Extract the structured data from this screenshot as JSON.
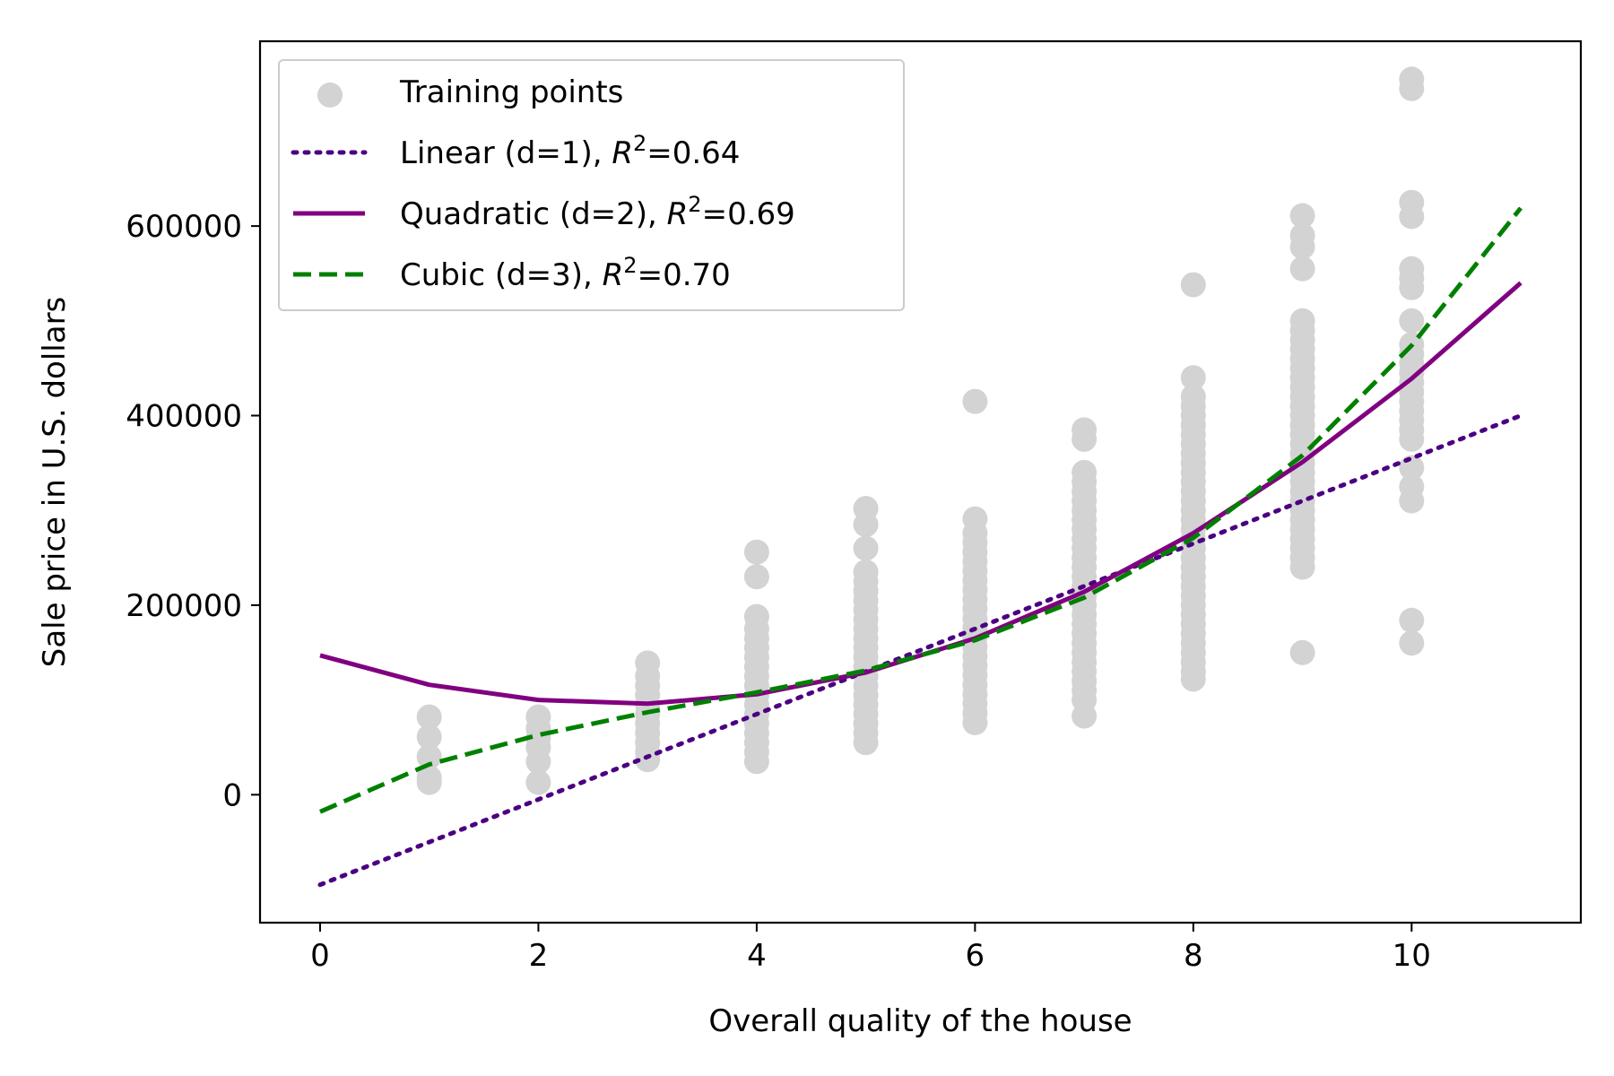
{
  "chart_data": {
    "type": "scatter",
    "xlabel": "Overall quality of the house",
    "ylabel": "Sale price in U.S. dollars",
    "xlim": [
      -0.55,
      11.55
    ],
    "ylim": [
      -135000,
      795000
    ],
    "xticks": [
      0,
      2,
      4,
      6,
      8,
      10
    ],
    "xtick_labels": [
      "0",
      "2",
      "4",
      "6",
      "8",
      "10"
    ],
    "yticks": [
      0,
      200000,
      400000,
      600000
    ],
    "ytick_labels": [
      "0",
      "200000",
      "400000",
      "600000"
    ],
    "grid": false,
    "legend_position": "upper-left",
    "scatter": {
      "name": "Training points",
      "color": "#d3d3d3",
      "points": [
        [
          1,
          13000
        ],
        [
          1,
          18000
        ],
        [
          1,
          40000
        ],
        [
          1,
          61000
        ],
        [
          1,
          82000
        ],
        [
          2,
          13000
        ],
        [
          2,
          35000
        ],
        [
          2,
          50000
        ],
        [
          2,
          60000
        ],
        [
          2,
          70000
        ],
        [
          2,
          82000
        ],
        [
          3,
          37000
        ],
        [
          3,
          45000
        ],
        [
          3,
          55000
        ],
        [
          3,
          65000
        ],
        [
          3,
          75000
        ],
        [
          3,
          85000
        ],
        [
          3,
          95000
        ],
        [
          3,
          105000
        ],
        [
          3,
          115000
        ],
        [
          3,
          125000
        ],
        [
          3,
          139000
        ],
        [
          4,
          35000
        ],
        [
          4,
          45000
        ],
        [
          4,
          55000
        ],
        [
          4,
          65000
        ],
        [
          4,
          75000
        ],
        [
          4,
          85000
        ],
        [
          4,
          95000
        ],
        [
          4,
          105000
        ],
        [
          4,
          115000
        ],
        [
          4,
          125000
        ],
        [
          4,
          135000
        ],
        [
          4,
          145000
        ],
        [
          4,
          155000
        ],
        [
          4,
          165000
        ],
        [
          4,
          175000
        ],
        [
          4,
          188000
        ],
        [
          4,
          230000
        ],
        [
          4,
          256000
        ],
        [
          5,
          55000
        ],
        [
          5,
          65000
        ],
        [
          5,
          75000
        ],
        [
          5,
          85000
        ],
        [
          5,
          95000
        ],
        [
          5,
          105000
        ],
        [
          5,
          115000
        ],
        [
          5,
          125000
        ],
        [
          5,
          135000
        ],
        [
          5,
          145000
        ],
        [
          5,
          155000
        ],
        [
          5,
          165000
        ],
        [
          5,
          175000
        ],
        [
          5,
          185000
        ],
        [
          5,
          195000
        ],
        [
          5,
          205000
        ],
        [
          5,
          215000
        ],
        [
          5,
          225000
        ],
        [
          5,
          235000
        ],
        [
          5,
          260000
        ],
        [
          5,
          285000
        ],
        [
          5,
          302000
        ],
        [
          6,
          76000
        ],
        [
          6,
          86000
        ],
        [
          6,
          96000
        ],
        [
          6,
          106000
        ],
        [
          6,
          116000
        ],
        [
          6,
          126000
        ],
        [
          6,
          136000
        ],
        [
          6,
          146000
        ],
        [
          6,
          156000
        ],
        [
          6,
          166000
        ],
        [
          6,
          176000
        ],
        [
          6,
          186000
        ],
        [
          6,
          196000
        ],
        [
          6,
          206000
        ],
        [
          6,
          216000
        ],
        [
          6,
          226000
        ],
        [
          6,
          236000
        ],
        [
          6,
          246000
        ],
        [
          6,
          256000
        ],
        [
          6,
          266000
        ],
        [
          6,
          276000
        ],
        [
          6,
          291000
        ],
        [
          6,
          415000
        ],
        [
          7,
          83000
        ],
        [
          7,
          100000
        ],
        [
          7,
          110000
        ],
        [
          7,
          120000
        ],
        [
          7,
          130000
        ],
        [
          7,
          140000
        ],
        [
          7,
          150000
        ],
        [
          7,
          160000
        ],
        [
          7,
          170000
        ],
        [
          7,
          180000
        ],
        [
          7,
          190000
        ],
        [
          7,
          200000
        ],
        [
          7,
          210000
        ],
        [
          7,
          220000
        ],
        [
          7,
          230000
        ],
        [
          7,
          240000
        ],
        [
          7,
          250000
        ],
        [
          7,
          260000
        ],
        [
          7,
          270000
        ],
        [
          7,
          280000
        ],
        [
          7,
          290000
        ],
        [
          7,
          300000
        ],
        [
          7,
          310000
        ],
        [
          7,
          320000
        ],
        [
          7,
          330000
        ],
        [
          7,
          340000
        ],
        [
          7,
          375000
        ],
        [
          7,
          385000
        ],
        [
          8,
          122000
        ],
        [
          8,
          130000
        ],
        [
          8,
          140000
        ],
        [
          8,
          150000
        ],
        [
          8,
          160000
        ],
        [
          8,
          170000
        ],
        [
          8,
          180000
        ],
        [
          8,
          190000
        ],
        [
          8,
          200000
        ],
        [
          8,
          210000
        ],
        [
          8,
          220000
        ],
        [
          8,
          230000
        ],
        [
          8,
          240000
        ],
        [
          8,
          250000
        ],
        [
          8,
          260000
        ],
        [
          8,
          270000
        ],
        [
          8,
          280000
        ],
        [
          8,
          290000
        ],
        [
          8,
          300000
        ],
        [
          8,
          310000
        ],
        [
          8,
          320000
        ],
        [
          8,
          330000
        ],
        [
          8,
          340000
        ],
        [
          8,
          350000
        ],
        [
          8,
          360000
        ],
        [
          8,
          370000
        ],
        [
          8,
          380000
        ],
        [
          8,
          390000
        ],
        [
          8,
          400000
        ],
        [
          8,
          410000
        ],
        [
          8,
          420000
        ],
        [
          8,
          440000
        ],
        [
          8,
          538000
        ],
        [
          9,
          150000
        ],
        [
          9,
          240000
        ],
        [
          9,
          250000
        ],
        [
          9,
          260000
        ],
        [
          9,
          270000
        ],
        [
          9,
          280000
        ],
        [
          9,
          290000
        ],
        [
          9,
          300000
        ],
        [
          9,
          310000
        ],
        [
          9,
          320000
        ],
        [
          9,
          330000
        ],
        [
          9,
          340000
        ],
        [
          9,
          350000
        ],
        [
          9,
          360000
        ],
        [
          9,
          370000
        ],
        [
          9,
          380000
        ],
        [
          9,
          390000
        ],
        [
          9,
          400000
        ],
        [
          9,
          410000
        ],
        [
          9,
          420000
        ],
        [
          9,
          430000
        ],
        [
          9,
          440000
        ],
        [
          9,
          450000
        ],
        [
          9,
          460000
        ],
        [
          9,
          470000
        ],
        [
          9,
          480000
        ],
        [
          9,
          490000
        ],
        [
          9,
          500000
        ],
        [
          9,
          555000
        ],
        [
          9,
          578000
        ],
        [
          9,
          590000
        ],
        [
          9,
          611000
        ],
        [
          10,
          160000
        ],
        [
          10,
          184000
        ],
        [
          10,
          310000
        ],
        [
          10,
          325000
        ],
        [
          10,
          345000
        ],
        [
          10,
          375000
        ],
        [
          10,
          385000
        ],
        [
          10,
          395000
        ],
        [
          10,
          405000
        ],
        [
          10,
          415000
        ],
        [
          10,
          425000
        ],
        [
          10,
          435000
        ],
        [
          10,
          445000
        ],
        [
          10,
          455000
        ],
        [
          10,
          465000
        ],
        [
          10,
          475000
        ],
        [
          10,
          500000
        ],
        [
          10,
          535000
        ],
        [
          10,
          545000
        ],
        [
          10,
          555000
        ],
        [
          10,
          610000
        ],
        [
          10,
          625000
        ],
        [
          10,
          745000
        ],
        [
          10,
          755000
        ]
      ]
    },
    "series": [
      {
        "name": "Linear (d=1), R²=0.64",
        "color": "#4b0082",
        "style": "dotted",
        "x": [
          0,
          11
        ],
        "y": [
          -95000,
          400000
        ]
      },
      {
        "name": "Quadratic (d=2), R²=0.69",
        "color": "#800080",
        "style": "solid",
        "x": [
          0,
          1,
          2,
          3,
          4,
          5,
          6,
          7,
          8,
          9,
          10,
          11
        ],
        "y": [
          147000,
          116000,
          100000,
          96000,
          106000,
          129000,
          165000,
          214000,
          276000,
          351000,
          439000,
          540000
        ]
      },
      {
        "name": "Cubic (d=3), R²=0.70",
        "color": "#008000",
        "style": "dashed",
        "x": [
          0,
          1,
          2,
          3,
          4,
          5,
          6,
          7,
          8,
          9,
          10,
          11
        ],
        "y": [
          -18000,
          32000,
          63000,
          87000,
          108000,
          131000,
          163000,
          208000,
          271000,
          358000,
          474000,
          619000
        ]
      }
    ],
    "legend": [
      {
        "label": "Training points",
        "marker": "circle",
        "color": "#d3d3d3"
      },
      {
        "label_main": "Linear (d=1), ",
        "label_math": "R",
        "label_sup": "2",
        "label_tail": "=0.64",
        "line": "dotted",
        "color": "#4b0082"
      },
      {
        "label_main": "Quadratic (d=2), ",
        "label_math": "R",
        "label_sup": "2",
        "label_tail": "=0.69",
        "line": "solid",
        "color": "#800080"
      },
      {
        "label_main": "Cubic (d=3), ",
        "label_math": "R",
        "label_sup": "2",
        "label_tail": "=0.70",
        "line": "dashed",
        "color": "#008000"
      }
    ]
  }
}
